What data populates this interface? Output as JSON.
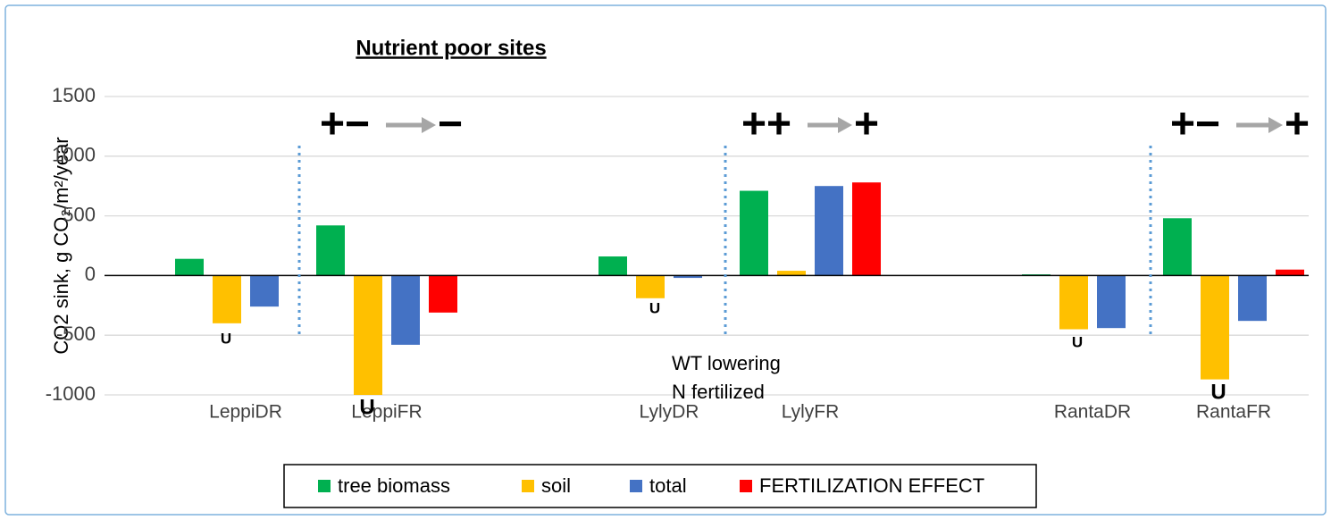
{
  "chart_data": {
    "type": "bar",
    "title": "Nutrient poor sites",
    "y_label": "CO2 sink, g CO₂/m²/year",
    "categories": [
      "LeppiDR",
      "LeppiFR",
      null,
      "LylyDR",
      "LylyFR",
      null,
      "RantaDR",
      "RantaFR"
    ],
    "series": [
      {
        "name": "tree biomass",
        "color": "#00b050",
        "values": [
          140,
          420,
          null,
          160,
          710,
          null,
          10,
          480
        ]
      },
      {
        "name": "soil",
        "color": "#ffc000",
        "values": [
          -400,
          -1000,
          null,
          -190,
          40,
          null,
          -450,
          -870
        ]
      },
      {
        "name": "total",
        "color": "#4472c4",
        "values": [
          -260,
          -580,
          null,
          -20,
          750,
          null,
          -440,
          -380
        ]
      },
      {
        "name": "FERTILIZATION EFFECT",
        "color": "#ff0000",
        "values": [
          null,
          -310,
          null,
          null,
          780,
          null,
          null,
          50
        ]
      }
    ],
    "ylim": [
      -1000,
      1500
    ],
    "yticks": [
      -1000,
      -500,
      0,
      500,
      1000,
      1500
    ],
    "grid": true,
    "legend": "bottom",
    "signs": [
      {
        "before": "+−",
        "after": "−"
      },
      {
        "before": "++",
        "after": "+"
      },
      {
        "before": "+−",
        "after": "+"
      }
    ],
    "u_labels": [
      "U",
      "U",
      "U",
      "U",
      "U"
    ],
    "notes": [
      "WT lowering",
      "N fertilized"
    ]
  }
}
